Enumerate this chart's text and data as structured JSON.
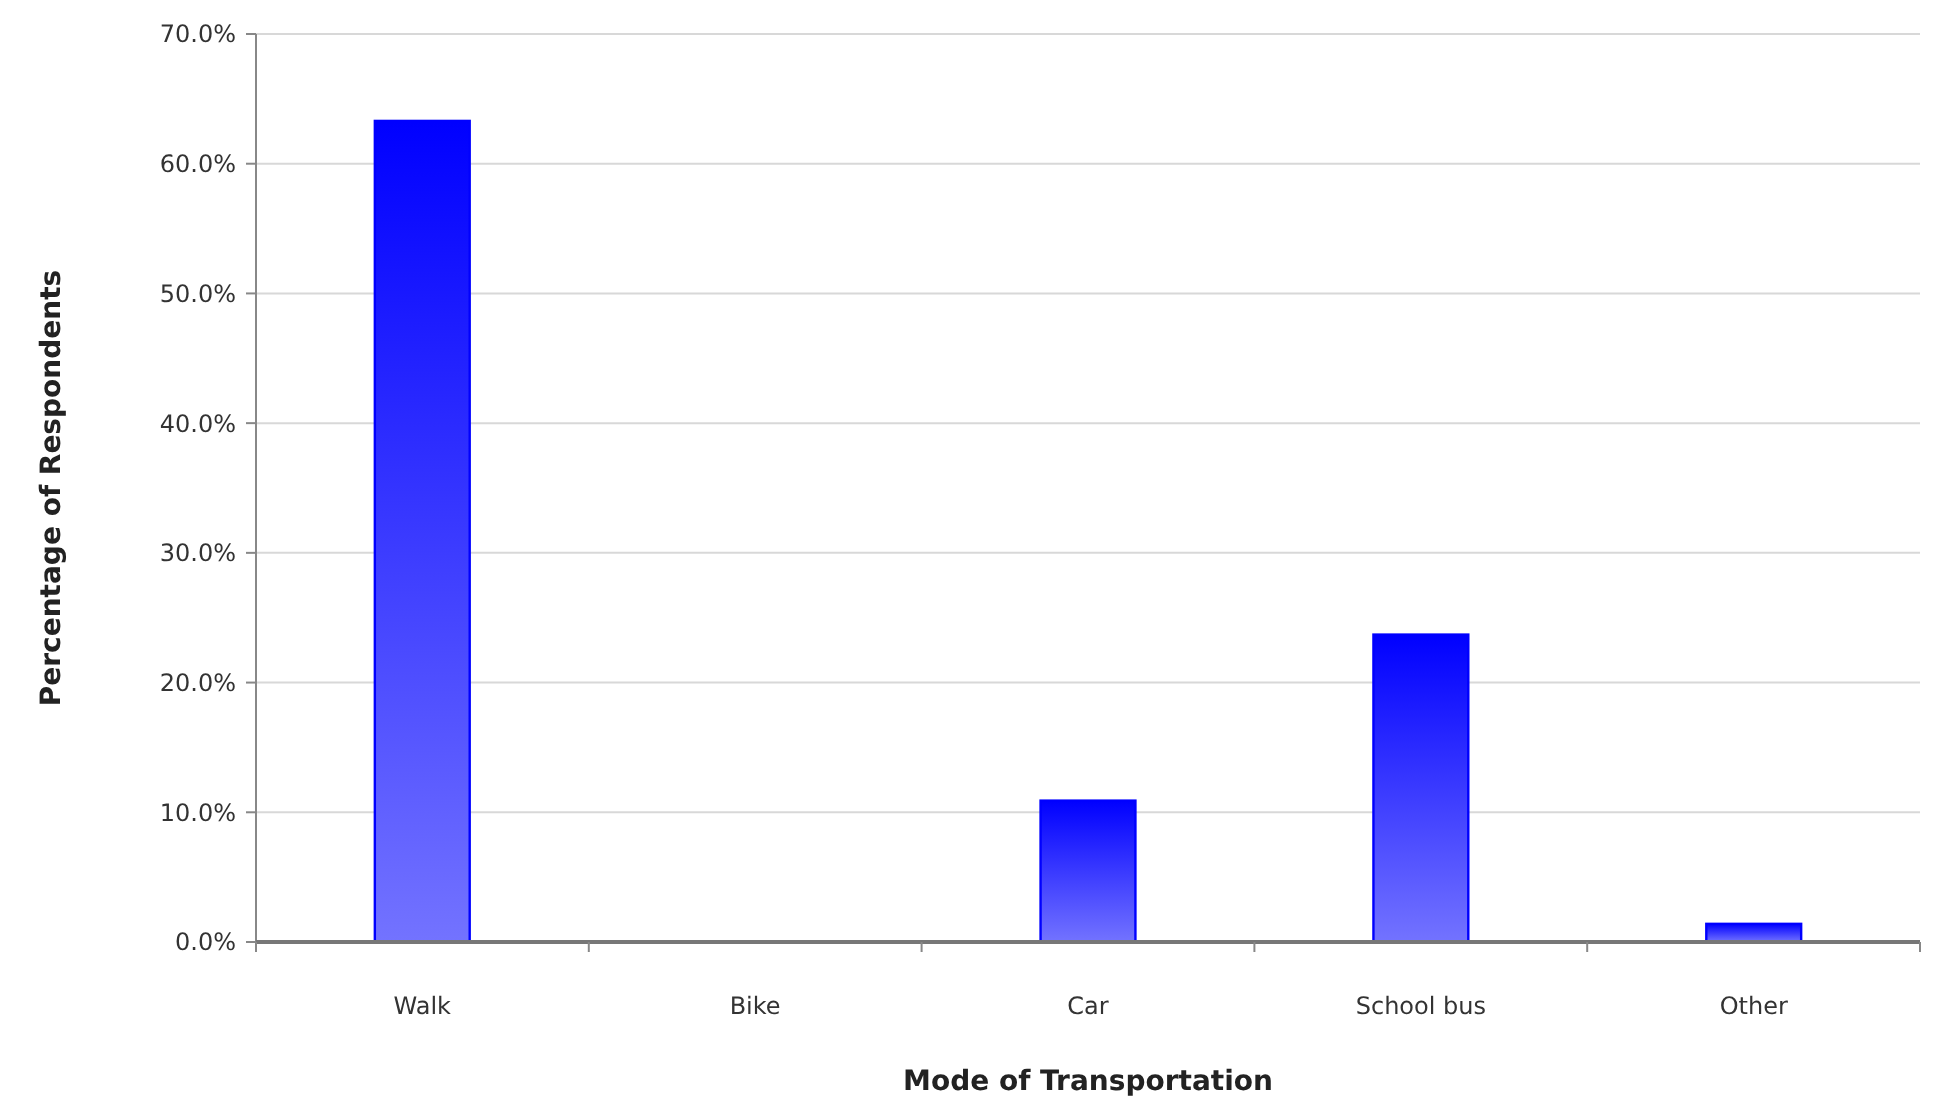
{
  "chart_data": {
    "type": "bar",
    "xlabel": "Mode of Transportation",
    "ylabel": "Percentage of Respondents",
    "categories": [
      "Walk",
      "Bike",
      "Car",
      "School bus",
      "Other"
    ],
    "values": [
      63.3,
      0,
      10.9,
      23.7,
      1.4
    ],
    "color": "#0000ff",
    "ylim": [
      0,
      70
    ],
    "yticks": [
      {
        "value": 0,
        "label": "0.0%"
      },
      {
        "value": 10,
        "label": "10.0%"
      },
      {
        "value": 20,
        "label": "20.0%"
      },
      {
        "value": 30,
        "label": "30.0%"
      },
      {
        "value": 40,
        "label": "40.0%"
      },
      {
        "value": 50,
        "label": "50.0%"
      },
      {
        "value": 60,
        "label": "60.0%"
      },
      {
        "value": 70,
        "label": "70.0%"
      }
    ],
    "grid": "y"
  }
}
